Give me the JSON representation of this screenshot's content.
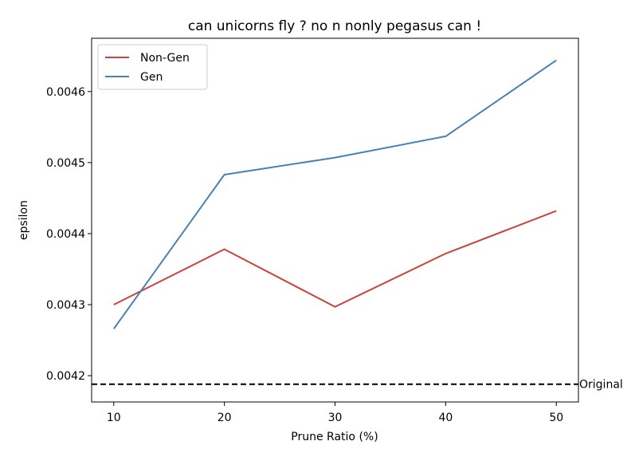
{
  "chart_data": {
    "type": "line",
    "title": "can unicorns fly ? no n nonly pegasus can !",
    "xlabel": "Prune Ratio (%)",
    "ylabel": "epsilon",
    "x": [
      10,
      20,
      30,
      40,
      50
    ],
    "xticks": [
      "10",
      "20",
      "30",
      "40",
      "50"
    ],
    "yticks": [
      "0.0042",
      "0.0043",
      "0.0044",
      "0.0045",
      "0.0046"
    ],
    "ytick_values": [
      0.0042,
      0.0043,
      0.0044,
      0.0045,
      0.0046
    ],
    "xlim": [
      8,
      52
    ],
    "ylim": [
      0.004163,
      0.004675
    ],
    "grid": false,
    "legend_position": "top-left",
    "series": [
      {
        "name": "Non-Gen",
        "color": "#c8443c",
        "values": [
          0.0043,
          0.004378,
          0.004297,
          0.004372,
          0.004432
        ]
      },
      {
        "name": "Gen",
        "color": "#4682b4",
        "values": [
          0.004266,
          0.004483,
          0.004507,
          0.004537,
          0.004644
        ]
      }
    ],
    "reference_line": {
      "label": "Original",
      "value": 0.004188,
      "color": "#000000",
      "style": "dashed"
    }
  }
}
